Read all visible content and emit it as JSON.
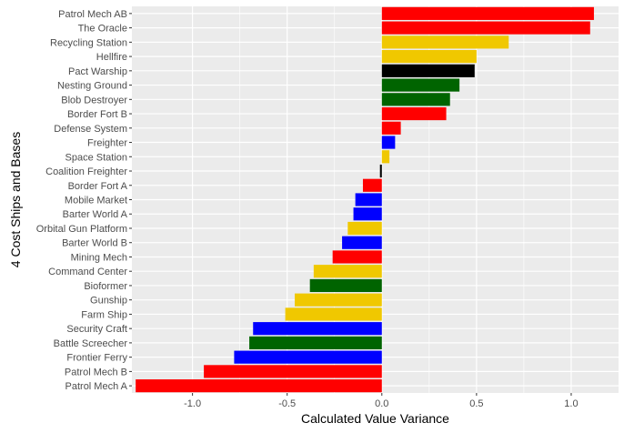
{
  "chart_data": {
    "type": "bar",
    "orientation": "horizontal",
    "title": "",
    "xlabel": "Calculated Value Variance",
    "ylabel": "4 Cost Ships and Bases",
    "xlim": [
      -1.32,
      1.25
    ],
    "x_ticks": [
      -1.0,
      -0.5,
      0.0,
      0.5,
      1.0
    ],
    "x_tick_labels": [
      "-1.0",
      "-0.5",
      "0.0",
      "0.5",
      "1.0"
    ],
    "grid": true,
    "legend": "none",
    "categories": [
      "Patrol Mech AB",
      "The Oracle",
      "Recycling Station",
      "Hellfire",
      "Pact Warship",
      "Nesting Ground",
      "Blob Destroyer",
      "Border Fort B",
      "Defense System",
      "Freighter",
      "Space Station",
      "Coalition Freighter",
      "Border Fort A",
      "Mobile Market",
      "Barter World A",
      "Orbital Gun Platform",
      "Barter World B",
      "Mining Mech",
      "Command Center",
      "Bioformer",
      "Gunship",
      "Farm Ship",
      "Security Craft",
      "Battle Screecher",
      "Frontier Ferry",
      "Patrol Mech B",
      "Patrol Mech A"
    ],
    "values": [
      1.12,
      1.1,
      0.67,
      0.5,
      0.49,
      0.41,
      0.36,
      0.34,
      0.1,
      0.07,
      0.04,
      -0.01,
      -0.1,
      -0.14,
      -0.15,
      -0.18,
      -0.21,
      -0.26,
      -0.36,
      -0.38,
      -0.46,
      -0.51,
      -0.68,
      -0.7,
      -0.78,
      -0.94,
      -1.3
    ],
    "bar_colors": [
      "#ff0000",
      "#ff0000",
      "#f0c800",
      "#f0c800",
      "#000000",
      "#006400",
      "#006400",
      "#ff0000",
      "#ff0000",
      "#0000ff",
      "#f0c800",
      "#000000",
      "#ff0000",
      "#0000ff",
      "#0000ff",
      "#f0c800",
      "#0000ff",
      "#ff0000",
      "#f0c800",
      "#006400",
      "#f0c800",
      "#f0c800",
      "#0000ff",
      "#006400",
      "#0000ff",
      "#ff0000",
      "#ff0000"
    ],
    "panel_background": "#ebebeb",
    "grid_color": "#ffffff"
  }
}
